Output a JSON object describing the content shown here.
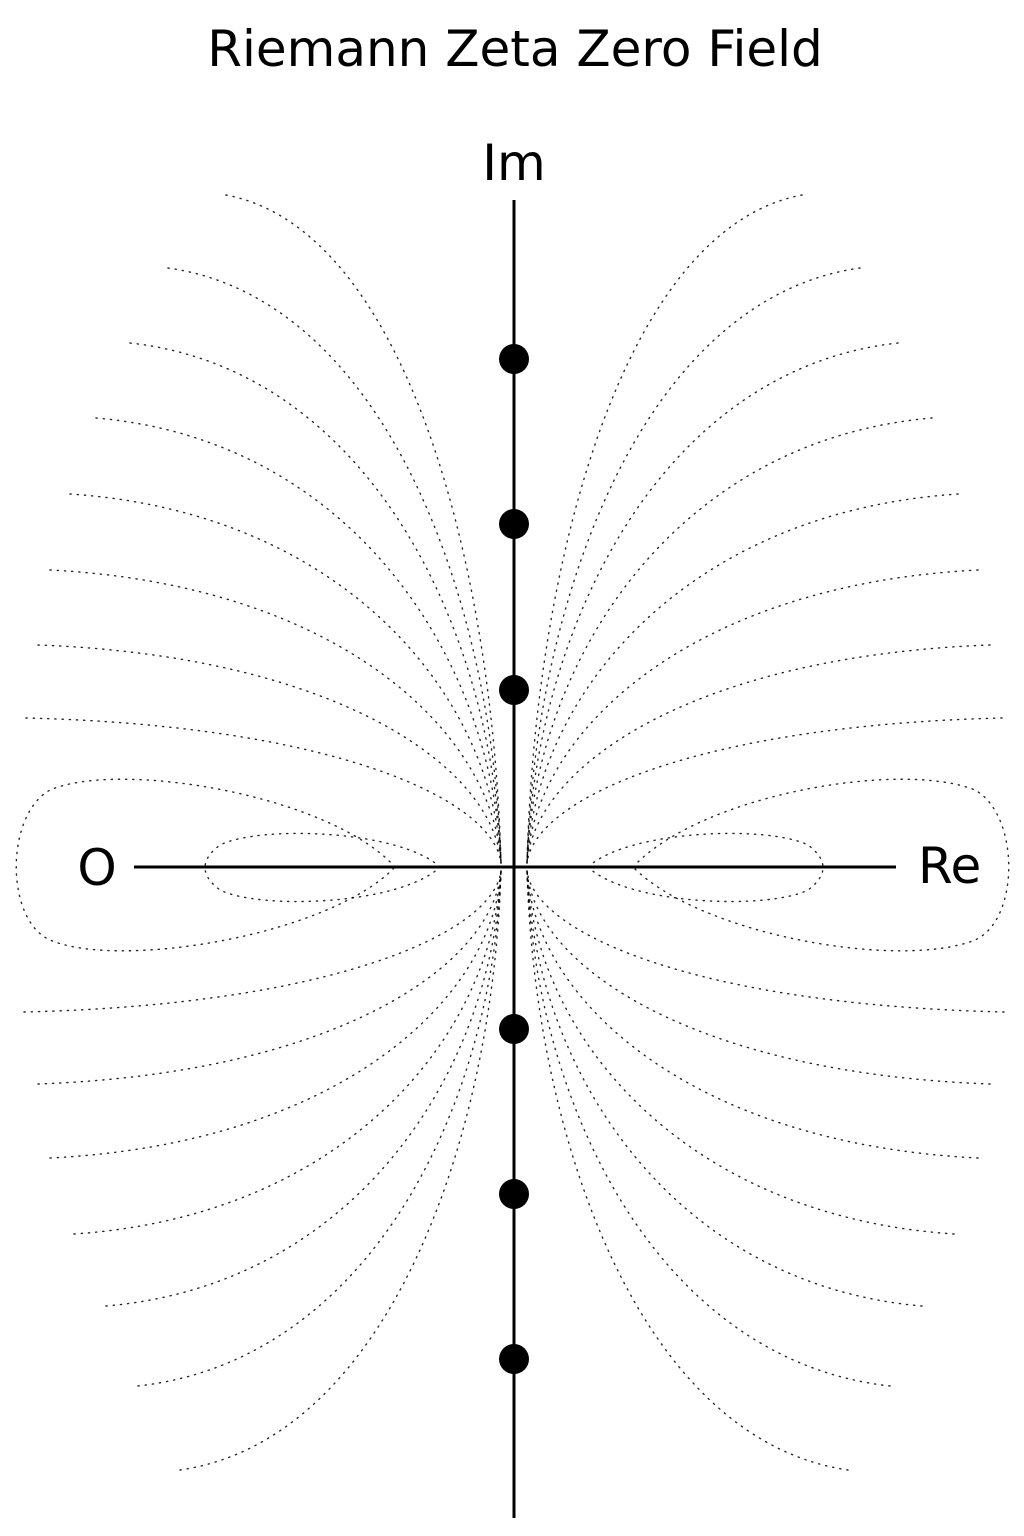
{
  "title": "Riemann Zeta Zero Field",
  "axes": {
    "imaginary_label": "Im",
    "real_label": "Re",
    "origin_label": "O"
  },
  "zeros": [
    {
      "name": "zero-upper-3"
    },
    {
      "name": "zero-upper-2"
    },
    {
      "name": "zero-upper-1"
    },
    {
      "name": "zero-lower-1"
    },
    {
      "name": "zero-lower-2"
    },
    {
      "name": "zero-lower-3"
    }
  ],
  "colors": {
    "ink": "#000000",
    "background": "#ffffff"
  }
}
